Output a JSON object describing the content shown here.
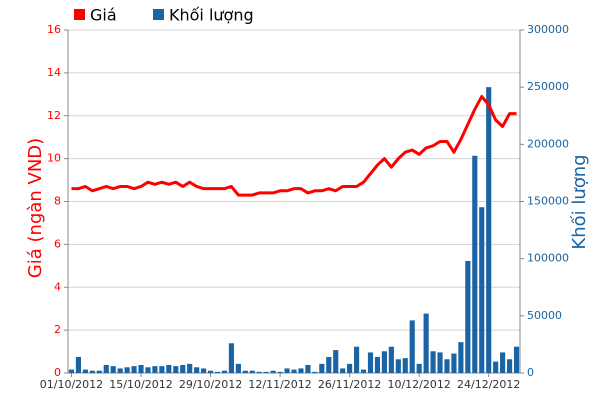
{
  "chart_data": {
    "type": "combo",
    "legend": "top-left",
    "grid": true,
    "y_label": "Giá (ngàn VND)",
    "y2_label": "Khối lượng",
    "categories": [
      "01/10/2012",
      null,
      null,
      null,
      null,
      null,
      null,
      null,
      null,
      null,
      "15/10/2012",
      null,
      null,
      null,
      null,
      null,
      null,
      null,
      null,
      null,
      "29/10/2012",
      null,
      null,
      null,
      null,
      null,
      null,
      null,
      null,
      null,
      "12/11/2012",
      null,
      null,
      null,
      null,
      null,
      null,
      null,
      null,
      null,
      "26/11/2012",
      null,
      null,
      null,
      null,
      null,
      null,
      null,
      null,
      null,
      "10/12/2012",
      null,
      null,
      null,
      null,
      null,
      null,
      null,
      null,
      null,
      "24/12/2012",
      null,
      null,
      null,
      null
    ],
    "ylim": [
      0,
      16
    ],
    "yticks": [
      0,
      2,
      4,
      6,
      8,
      10,
      12,
      14,
      16
    ],
    "y2lim": [
      0,
      300000
    ],
    "y2ticks": [
      0,
      50000,
      100000,
      150000,
      200000,
      250000,
      300000
    ],
    "series": [
      {
        "name": "Khối lượng",
        "type": "bar",
        "axis": "y2",
        "color": "#1a64a3",
        "values": [
          3000,
          14000,
          3000,
          2000,
          2000,
          7000,
          6000,
          4000,
          5000,
          6000,
          7000,
          5000,
          6000,
          6000,
          7000,
          6000,
          7000,
          8000,
          5000,
          4000,
          2000,
          1000,
          2000,
          26000,
          8000,
          2000,
          2000,
          1000,
          1000,
          2000,
          1000,
          4000,
          3000,
          4000,
          7000,
          1000,
          8000,
          14000,
          20000,
          4000,
          8000,
          23000,
          3000,
          18000,
          14000,
          19000,
          23000,
          12000,
          13000,
          46000,
          8000,
          52000,
          19000,
          18000,
          12000,
          17000,
          27000,
          98000,
          190000,
          145000,
          250000,
          10000,
          18000,
          12000,
          23000
        ]
      },
      {
        "name": "Giá",
        "type": "line",
        "axis": "y",
        "color": "#ff0000",
        "values": [
          8.6,
          8.6,
          8.7,
          8.5,
          8.6,
          8.7,
          8.6,
          8.7,
          8.7,
          8.6,
          8.7,
          8.9,
          8.8,
          8.9,
          8.8,
          8.9,
          8.7,
          8.9,
          8.7,
          8.6,
          8.6,
          8.6,
          8.6,
          8.7,
          8.3,
          8.3,
          8.3,
          8.4,
          8.4,
          8.4,
          8.5,
          8.5,
          8.6,
          8.6,
          8.4,
          8.5,
          8.5,
          8.6,
          8.5,
          8.7,
          8.7,
          8.7,
          8.9,
          9.3,
          9.7,
          10.0,
          9.6,
          10.0,
          10.3,
          10.4,
          10.2,
          10.5,
          10.6,
          10.8,
          10.8,
          10.3,
          10.9,
          11.6,
          12.3,
          12.9,
          12.5,
          11.8,
          11.5,
          12.1,
          12.1
        ]
      }
    ]
  }
}
